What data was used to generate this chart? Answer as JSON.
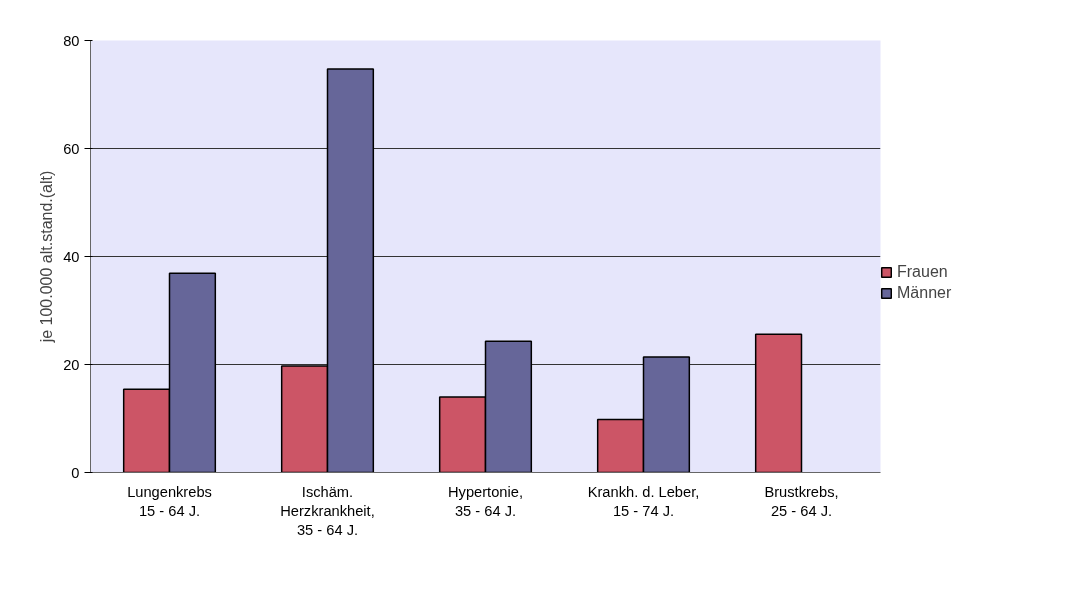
{
  "chart_data": {
    "type": "bar",
    "ylabel": "je 100.000 alt.stand.(alt)",
    "categories": [
      "Lungenkrebs\n15 - 64 J.",
      "Ischäm.\nHerzkrankheit,\n35 - 64 J.",
      "Hypertonie,\n35 - 64 J.",
      "Krankh. d. Leber,\n15 - 74 J.",
      "Brustkrebs,\n25 - 64 J."
    ],
    "series": [
      {
        "name": "Frauen",
        "color": "#cc5566",
        "values": [
          15.4,
          19.7,
          14.0,
          9.8,
          25.6
        ]
      },
      {
        "name": "Männer",
        "color": "#666699",
        "values": [
          36.9,
          74.7,
          24.3,
          21.4,
          null
        ]
      }
    ],
    "ylim": [
      0,
      80
    ],
    "yticks": [
      0,
      20,
      40,
      60,
      80
    ],
    "grid": "y",
    "legend": "right"
  }
}
